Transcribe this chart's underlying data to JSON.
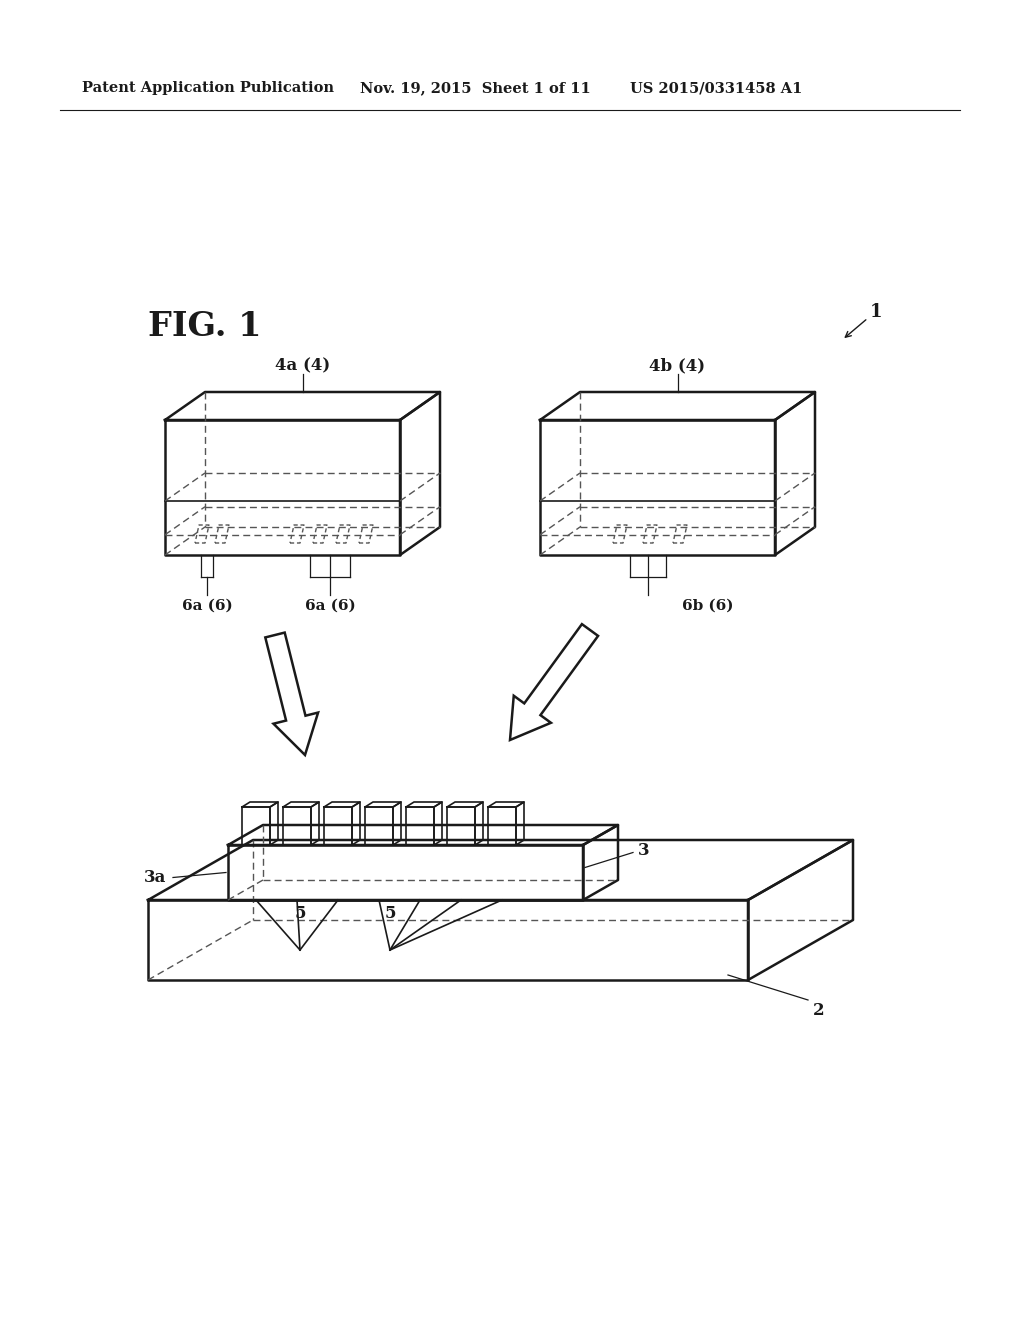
{
  "bg_color": "#ffffff",
  "header_text": "Patent Application Publication",
  "header_date": "Nov. 19, 2015  Sheet 1 of 11",
  "header_patent": "US 2015/0331458 A1",
  "fig_label": "FIG. 1",
  "ref_1": "1",
  "ref_2": "2",
  "ref_3": "3",
  "ref_3a": "3a",
  "ref_4a": "4a (4)",
  "ref_4b": "4b (4)",
  "ref_5a": "5",
  "ref_5b": "5",
  "ref_6a1": "6a (6)",
  "ref_6a2": "6a (6)",
  "ref_6b": "6b (6)"
}
